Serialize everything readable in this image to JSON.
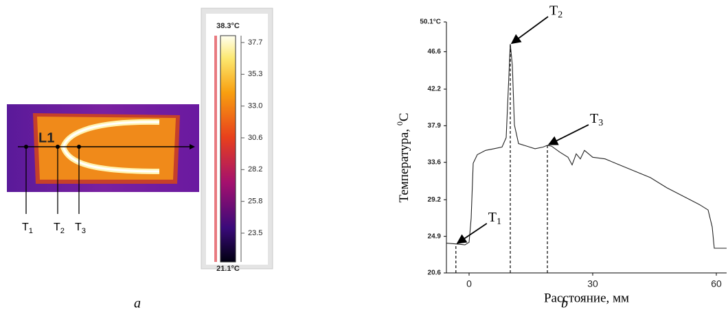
{
  "thermal_image": {
    "line_label": "L1",
    "markers": [
      {
        "letter": "T",
        "sub": "1"
      },
      {
        "letter": "T",
        "sub": "2"
      },
      {
        "letter": "T",
        "sub": "3"
      }
    ],
    "colorbar": {
      "max_label": "38.3°C",
      "min_label": "21.1°C",
      "tick_labels": [
        "37.7",
        "35.3",
        "33.0",
        "30.6",
        "28.2",
        "25.8",
        "23.5"
      ]
    }
  },
  "chart_data": {
    "type": "line",
    "xlabel": "Расстояние, мм",
    "ylabel": "Температура, ",
    "ylabel_sup": "0",
    "ylabel_unit": "C",
    "xlim": [
      -5.5,
      62.5
    ],
    "ylim": [
      20.6,
      50.1
    ],
    "xticks": [
      0,
      30,
      60
    ],
    "yticks": [
      20.6,
      24.9,
      29.2,
      33.6,
      37.9,
      42.2,
      46.6,
      {
        "value": 50.1,
        "label": "50.1°C"
      }
    ],
    "series": [
      {
        "name": "L1",
        "color": "#222222",
        "x": [
          -5.5,
          -3,
          -1,
          0,
          0.5,
          1,
          2,
          4,
          6,
          8,
          9,
          9.5,
          10,
          10.5,
          11,
          12,
          14,
          16,
          18,
          19,
          20,
          22,
          24,
          25,
          26,
          27,
          28,
          30,
          33,
          36,
          40,
          44,
          48,
          52,
          56,
          58,
          59,
          59.5,
          62.5
        ],
        "values": [
          24.1,
          24.0,
          23.9,
          24.2,
          27,
          33.5,
          34.5,
          35,
          35.2,
          35.4,
          36.5,
          42,
          47.5,
          45,
          38,
          35.8,
          35.5,
          35.2,
          35.4,
          35.6,
          35.5,
          34.8,
          34.2,
          33.3,
          34.6,
          34.0,
          35.0,
          34.2,
          34.0,
          33.4,
          32.6,
          31.8,
          30.6,
          29.6,
          28.6,
          28.0,
          26,
          23.5,
          23.5
        ]
      }
    ],
    "markers": [
      {
        "letter": "T",
        "sub": "1",
        "x": -3.2,
        "y": 24.0
      },
      {
        "letter": "T",
        "sub": "2",
        "x": 10,
        "y": 47.5
      },
      {
        "letter": "T",
        "sub": "3",
        "x": 19,
        "y": 35.6
      }
    ]
  },
  "captions": [
    "a",
    "b"
  ]
}
